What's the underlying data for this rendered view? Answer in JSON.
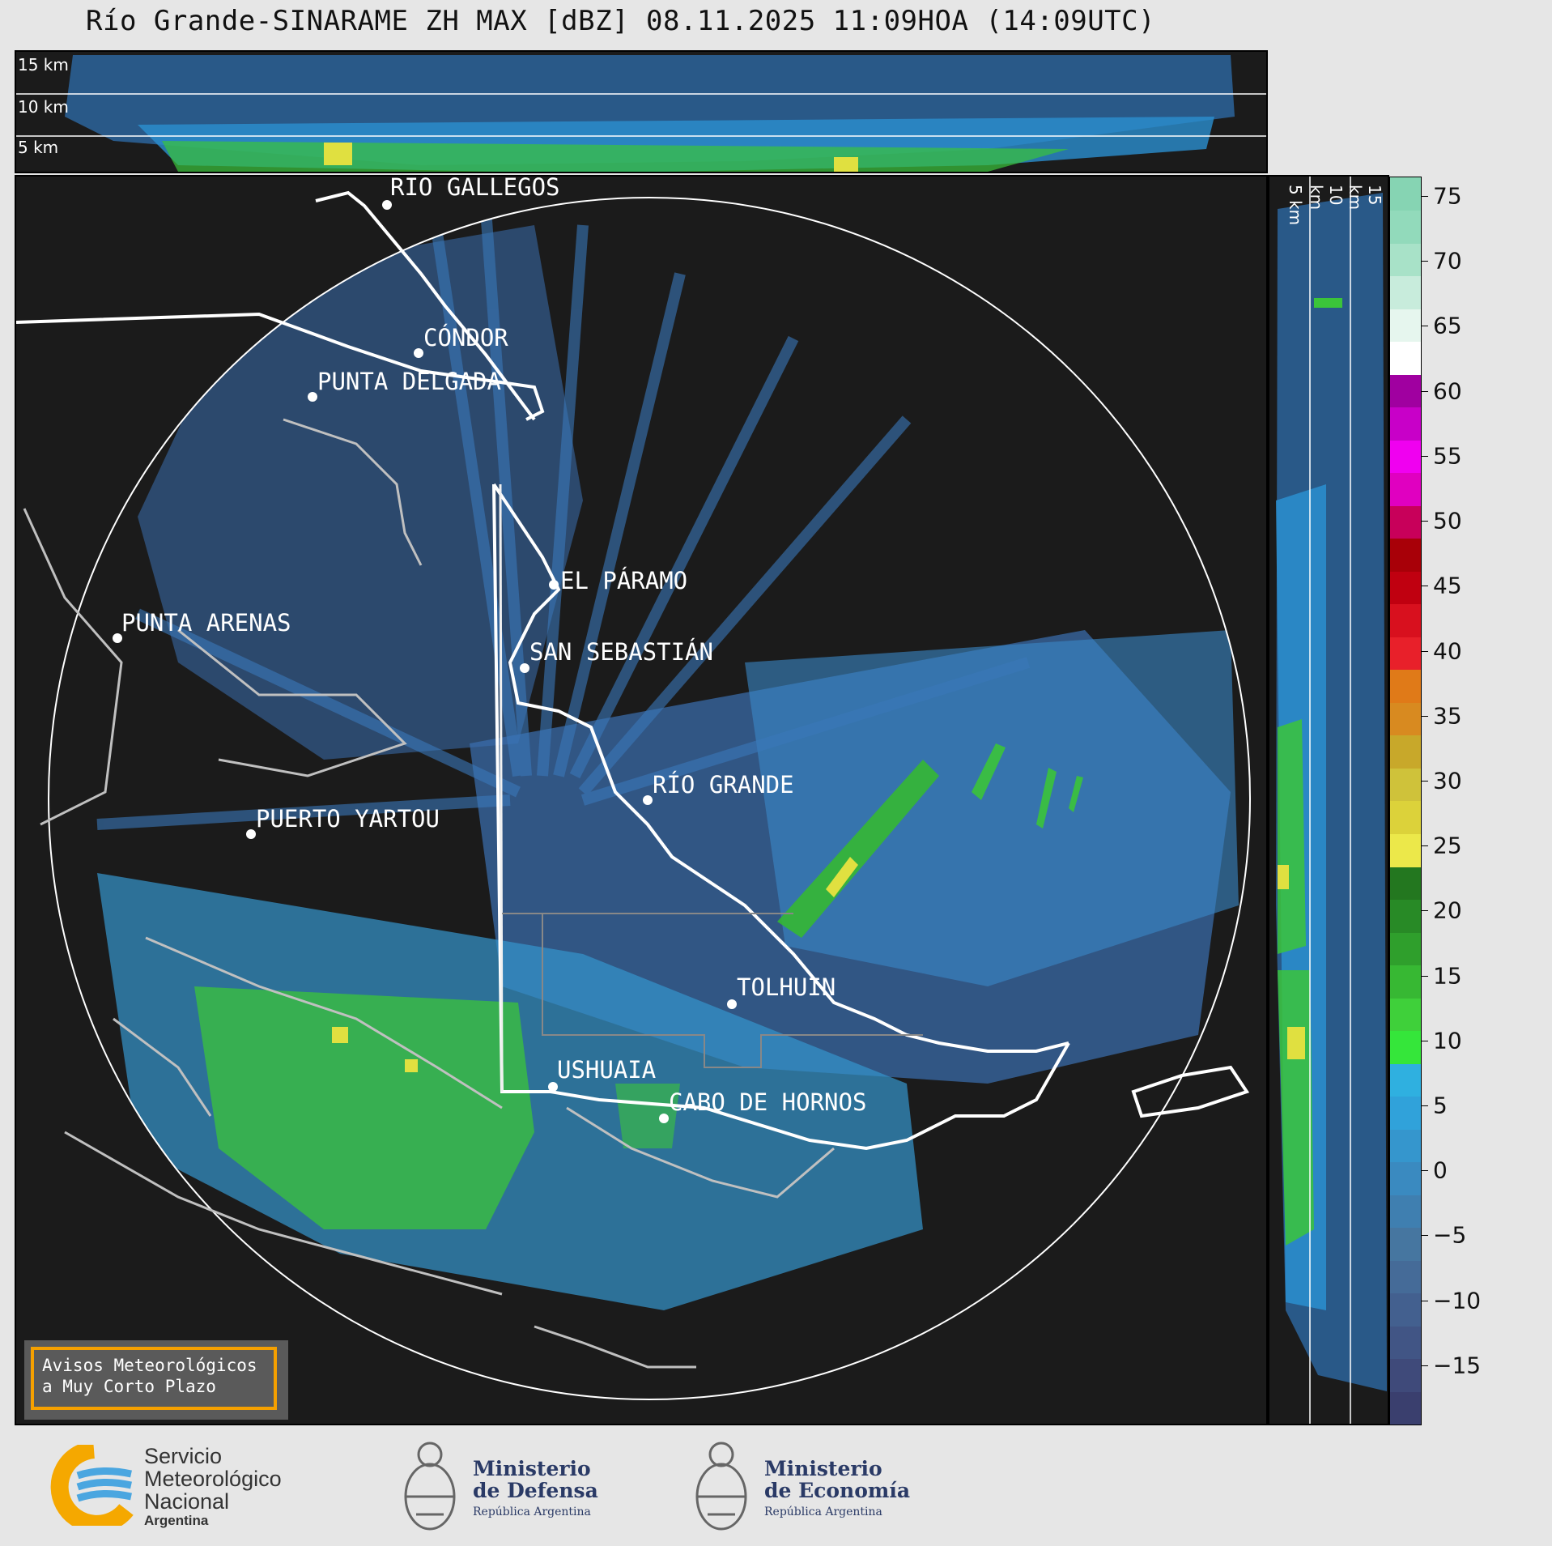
{
  "title": "Río Grande-SINARAME ZH MAX [dBZ] 08.11.2025 11:09HOA (14:09UTC)",
  "cross_section_top": {
    "height_labels": [
      "15 km",
      "10 km",
      "5 km"
    ]
  },
  "cross_section_side": {
    "height_labels": [
      "5 km",
      "10 km",
      "15 km"
    ]
  },
  "cities": [
    {
      "name": "RÍO GALLEGOS"
    },
    {
      "name": "CÓNDOR"
    },
    {
      "name": "PUNTA DELGADA"
    },
    {
      "name": "EL PÁRAMO"
    },
    {
      "name": "PUNTA ARENAS"
    },
    {
      "name": "SAN SEBASTIÁN"
    },
    {
      "name": "RÍO GRANDE"
    },
    {
      "name": "PUERTO YARTOU"
    },
    {
      "name": "TOLHUIN"
    },
    {
      "name": "USHUAIA"
    },
    {
      "name": "CABO DE HORNOS"
    }
  ],
  "colorbar": {
    "unit": "dBZ",
    "ticks": [
      "75",
      "70",
      "65",
      "60",
      "55",
      "50",
      "45",
      "40",
      "35",
      "30",
      "25",
      "20",
      "15",
      "10",
      "5",
      "0",
      "−5",
      "−10",
      "−15"
    ],
    "colors": [
      "#3a3f6e",
      "#3f4a7a",
      "#415585",
      "#43608f",
      "#456b98",
      "#4676a0",
      "#3f7fb0",
      "#3a8ac0",
      "#3596cd",
      "#30a2da",
      "#2fb0e0",
      "#35e63a",
      "#3fd03a",
      "#37b833",
      "#2f9f2c",
      "#288a26",
      "#23771f",
      "#ece84a",
      "#dcd23a",
      "#cfc23a",
      "#c8a82a",
      "#d88a20",
      "#e07a18",
      "#e8202a",
      "#d8101e",
      "#c00010",
      "#a80008",
      "#c8005a",
      "#e000c0",
      "#f000f0",
      "#c800c8",
      "#a000a0",
      "#ffffff",
      "#e6f6ee",
      "#c8ecdc",
      "#a8e2c8",
      "#92dabb",
      "#86d4b3"
    ]
  },
  "aviso": {
    "line1": "Avisos Meteorológicos",
    "line2": "a Muy Corto Plazo"
  },
  "logos": {
    "smn": {
      "line1": "Servicio",
      "line2": "Meteorológico",
      "line3": "Nacional",
      "line4": "Argentina"
    },
    "defensa": {
      "line1": "Ministerio",
      "line2": "de Defensa",
      "line3": "República Argentina"
    },
    "economia": {
      "line1": "Ministerio",
      "line2": "de Economía",
      "line3": "República Argentina"
    }
  }
}
